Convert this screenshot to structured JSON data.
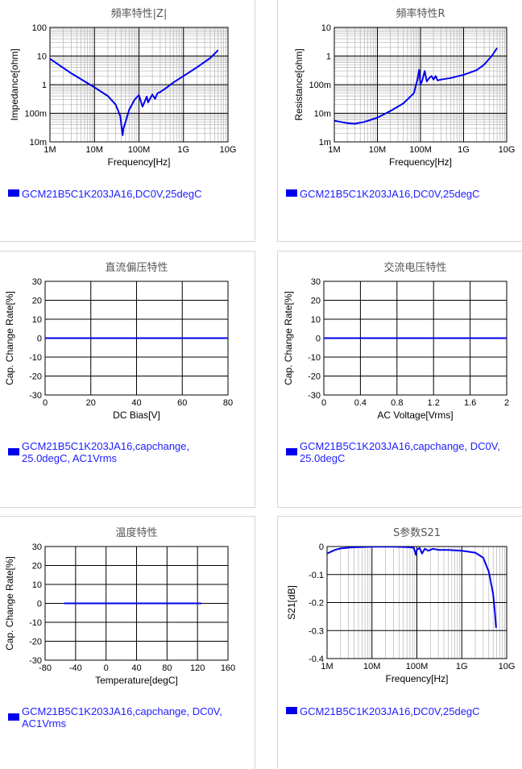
{
  "colors": {
    "series": "#0000ee",
    "legend_text": "#2020ff",
    "grid": "#000000",
    "minor_grid": "#b4b4b4"
  },
  "chart_data": [
    {
      "id": "impedance",
      "type": "line",
      "title": "頻率特性|Z|",
      "xlabel": "Frequency[Hz]",
      "ylabel": "Impedance[ohm]",
      "xscale": "log",
      "yscale": "log",
      "xlim": [
        1000000,
        10000000000
      ],
      "ylim": [
        0.01,
        100
      ],
      "xticks": [
        {
          "v": 1000000,
          "label": "1M"
        },
        {
          "v": 10000000,
          "label": "10M"
        },
        {
          "v": 100000000,
          "label": "100M"
        },
        {
          "v": 1000000000,
          "label": "1G"
        },
        {
          "v": 10000000000,
          "label": "10G"
        }
      ],
      "yticks": [
        {
          "v": 0.01,
          "label": "10m"
        },
        {
          "v": 0.1,
          "label": "100m"
        },
        {
          "v": 1,
          "label": "1"
        },
        {
          "v": 10,
          "label": "10"
        },
        {
          "v": 100,
          "label": "100"
        }
      ],
      "grid": true,
      "minor_grid": true,
      "legend": "GCM21B5C1K203JA16,DC0V,25degC",
      "series": [
        {
          "x": [
            1000000,
            3000000,
            10000000,
            20000000,
            30000000,
            38000000,
            41000000,
            43000000,
            45000000,
            50000000,
            60000000,
            80000000,
            100000000,
            120000000,
            150000000,
            160000000,
            200000000,
            230000000,
            260000000,
            300000000,
            400000000,
            600000000,
            1000000000,
            2000000000,
            4000000000,
            6000000000
          ],
          "y": [
            8,
            2.5,
            0.8,
            0.4,
            0.2,
            0.08,
            0.03,
            0.017,
            0.03,
            0.05,
            0.13,
            0.3,
            0.43,
            0.17,
            0.38,
            0.24,
            0.45,
            0.32,
            0.5,
            0.55,
            0.75,
            1.2,
            2.0,
            4.0,
            8.5,
            16
          ]
        }
      ]
    },
    {
      "id": "resistance",
      "type": "line",
      "title": "頻率特性R",
      "xlabel": "Frequency[Hz]",
      "ylabel": "Resistance[ohm]",
      "xscale": "log",
      "yscale": "log",
      "xlim": [
        1000000,
        10000000000
      ],
      "ylim": [
        0.001,
        10
      ],
      "xticks": [
        {
          "v": 1000000,
          "label": "1M"
        },
        {
          "v": 10000000,
          "label": "10M"
        },
        {
          "v": 100000000,
          "label": "100M"
        },
        {
          "v": 1000000000,
          "label": "1G"
        },
        {
          "v": 10000000000,
          "label": "10G"
        }
      ],
      "yticks": [
        {
          "v": 0.001,
          "label": "1m"
        },
        {
          "v": 0.01,
          "label": "10m"
        },
        {
          "v": 0.1,
          "label": "100m"
        },
        {
          "v": 1,
          "label": "1"
        },
        {
          "v": 10,
          "label": "10"
        }
      ],
      "grid": true,
      "minor_grid": true,
      "legend": "GCM21B5C1K203JA16,DC0V,25degC",
      "series": [
        {
          "x": [
            1000000,
            2000000,
            3000000,
            5000000,
            10000000,
            20000000,
            40000000,
            70000000,
            85000000,
            93000000,
            100000000,
            110000000,
            125000000,
            140000000,
            160000000,
            180000000,
            200000000,
            225000000,
            250000000,
            300000000,
            500000000,
            1000000000,
            2000000000,
            3000000000,
            4500000000,
            6000000000
          ],
          "y": [
            0.0055,
            0.0045,
            0.0043,
            0.005,
            0.007,
            0.012,
            0.022,
            0.05,
            0.15,
            0.33,
            0.1,
            0.14,
            0.3,
            0.13,
            0.17,
            0.2,
            0.15,
            0.2,
            0.14,
            0.15,
            0.17,
            0.22,
            0.32,
            0.5,
            1.0,
            1.9
          ]
        }
      ]
    },
    {
      "id": "dc-bias",
      "type": "line",
      "title": "直流偏压特性",
      "xlabel": "DC Bias[V]",
      "ylabel": "Cap. Change Rate[%]",
      "xlim": [
        0,
        80
      ],
      "ylim": [
        -30,
        30
      ],
      "xticks": [
        {
          "v": 0,
          "label": "0"
        },
        {
          "v": 20,
          "label": "20"
        },
        {
          "v": 40,
          "label": "40"
        },
        {
          "v": 60,
          "label": "60"
        },
        {
          "v": 80,
          "label": "80"
        }
      ],
      "yticks": [
        {
          "v": -30,
          "label": "-30"
        },
        {
          "v": -20,
          "label": "-20"
        },
        {
          "v": -10,
          "label": "-10"
        },
        {
          "v": 0,
          "label": "0"
        },
        {
          "v": 10,
          "label": "10"
        },
        {
          "v": 20,
          "label": "20"
        },
        {
          "v": 30,
          "label": "30"
        }
      ],
      "grid": true,
      "legend": "GCM21B5C1K203JA16,capchange,\n25.0degC, AC1Vrms",
      "series": [
        {
          "x": [
            0,
            80
          ],
          "y": [
            0,
            0
          ]
        }
      ]
    },
    {
      "id": "ac-voltage",
      "type": "line",
      "title": "交流电压特性",
      "xlabel": "AC Voltage[Vrms]",
      "ylabel": "Cap. Change Rate[%]",
      "xlim": [
        0,
        2
      ],
      "ylim": [
        -30,
        30
      ],
      "xticks": [
        {
          "v": 0,
          "label": "0"
        },
        {
          "v": 0.4,
          "label": "0.4"
        },
        {
          "v": 0.8,
          "label": "0.8"
        },
        {
          "v": 1.2,
          "label": "1.2"
        },
        {
          "v": 1.6,
          "label": "1.6"
        },
        {
          "v": 2,
          "label": "2"
        }
      ],
      "yticks": [
        {
          "v": -30,
          "label": "-30"
        },
        {
          "v": -20,
          "label": "-20"
        },
        {
          "v": -10,
          "label": "-10"
        },
        {
          "v": 0,
          "label": "0"
        },
        {
          "v": 10,
          "label": "10"
        },
        {
          "v": 20,
          "label": "20"
        },
        {
          "v": 30,
          "label": "30"
        }
      ],
      "grid": true,
      "legend": "GCM21B5C1K203JA16,capchange, DC0V,\n25.0degC",
      "series": [
        {
          "x": [
            0,
            2
          ],
          "y": [
            0,
            0
          ]
        }
      ]
    },
    {
      "id": "temperature",
      "type": "line",
      "title": "温度特性",
      "xlabel": "Temperature[degC]",
      "ylabel": "Cap. Change Rate[%]",
      "xlim": [
        -80,
        160
      ],
      "ylim": [
        -30,
        30
      ],
      "xticks": [
        {
          "v": -80,
          "label": "-80"
        },
        {
          "v": -40,
          "label": "-40"
        },
        {
          "v": 0,
          "label": "0"
        },
        {
          "v": 40,
          "label": "40"
        },
        {
          "v": 80,
          "label": "80"
        },
        {
          "v": 120,
          "label": "120"
        },
        {
          "v": 160,
          "label": "160"
        }
      ],
      "yticks": [
        {
          "v": -30,
          "label": "-30"
        },
        {
          "v": -20,
          "label": "-20"
        },
        {
          "v": -10,
          "label": "-10"
        },
        {
          "v": 0,
          "label": "0"
        },
        {
          "v": 10,
          "label": "10"
        },
        {
          "v": 20,
          "label": "20"
        },
        {
          "v": 30,
          "label": "30"
        }
      ],
      "grid": true,
      "legend": "GCM21B5C1K203JA16,capchange, DC0V,\nAC1Vrms",
      "series": [
        {
          "x": [
            -55,
            125
          ],
          "y": [
            0,
            0
          ]
        }
      ]
    },
    {
      "id": "s21",
      "type": "line",
      "title": "S参数S21",
      "xlabel": "Frequency[Hz]",
      "ylabel": "S21[dB]",
      "xscale": "log",
      "xlim": [
        1000000,
        10000000000
      ],
      "ylim": [
        -0.4,
        0
      ],
      "xticks": [
        {
          "v": 1000000,
          "label": "1M"
        },
        {
          "v": 10000000,
          "label": "10M"
        },
        {
          "v": 100000000,
          "label": "100M"
        },
        {
          "v": 1000000000,
          "label": "1G"
        },
        {
          "v": 10000000000,
          "label": "10G"
        }
      ],
      "yticks": [
        {
          "v": -0.4,
          "label": "-0.4"
        },
        {
          "v": -0.3,
          "label": "-0.3"
        },
        {
          "v": -0.2,
          "label": "-0.2"
        },
        {
          "v": -0.1,
          "label": "-0.1"
        },
        {
          "v": 0,
          "label": "0"
        }
      ],
      "grid": true,
      "minor_grid_x": true,
      "legend": "GCM21B5C1K203JA16,DC0V,25degC",
      "series": [
        {
          "x": [
            1000000,
            1500000,
            2000000,
            3000000,
            5000000,
            10000000,
            30000000,
            60000000,
            85000000,
            95000000,
            100000000,
            115000000,
            130000000,
            150000000,
            180000000,
            230000000,
            300000000,
            500000000,
            1000000000,
            2000000000,
            3000000000,
            4000000000,
            5000000000,
            5500000000,
            5800000000
          ],
          "y": [
            -0.025,
            -0.012,
            -0.007,
            -0.004,
            -0.002,
            -0.001,
            -0.001,
            -0.002,
            -0.004,
            -0.03,
            -0.012,
            -0.005,
            -0.025,
            -0.008,
            -0.015,
            -0.008,
            -0.012,
            -0.012,
            -0.015,
            -0.022,
            -0.04,
            -0.09,
            -0.17,
            -0.24,
            -0.29
          ]
        }
      ]
    }
  ]
}
